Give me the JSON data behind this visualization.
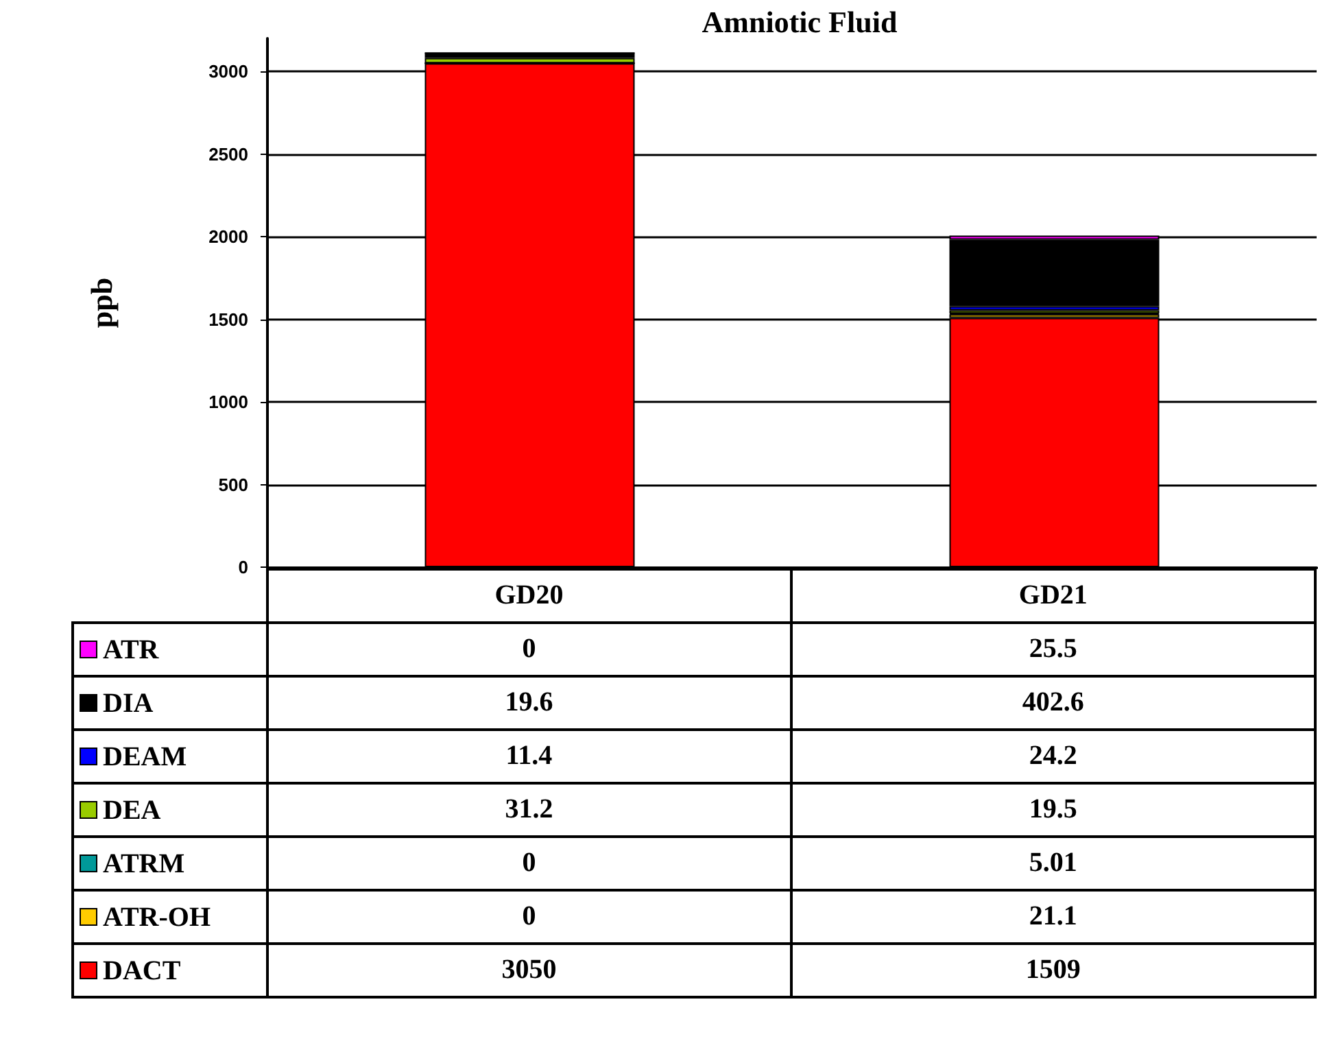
{
  "chart_data": {
    "type": "bar",
    "title": "Amniotic Fluid",
    "ylabel": "ppb",
    "categories": [
      "GD20",
      "GD21"
    ],
    "stacked": true,
    "ylim": [
      0,
      3200
    ],
    "yticks": [
      0,
      500,
      1000,
      1500,
      2000,
      2500,
      3000
    ],
    "grid": "y",
    "legend": "bottom",
    "data_labels": true,
    "series": [
      {
        "name": "DACT",
        "color": "#ff0000",
        "values": [
          3050,
          1509
        ]
      },
      {
        "name": "ATR-OH",
        "color": "#ffcc00",
        "values": [
          0,
          21.1
        ]
      },
      {
        "name": "ATRM",
        "color": "#009999",
        "values": [
          0,
          5.01
        ]
      },
      {
        "name": "DEA",
        "color": "#99cc00",
        "values": [
          31.2,
          19.5
        ]
      },
      {
        "name": "DEAM",
        "color": "#0000ff",
        "values": [
          11.4,
          24.2
        ]
      },
      {
        "name": "DIA",
        "color": "#000000",
        "values": [
          19.6,
          402.6
        ]
      },
      {
        "name": "ATR",
        "color": "#ff00ff",
        "values": [
          0,
          25.5
        ]
      }
    ]
  }
}
